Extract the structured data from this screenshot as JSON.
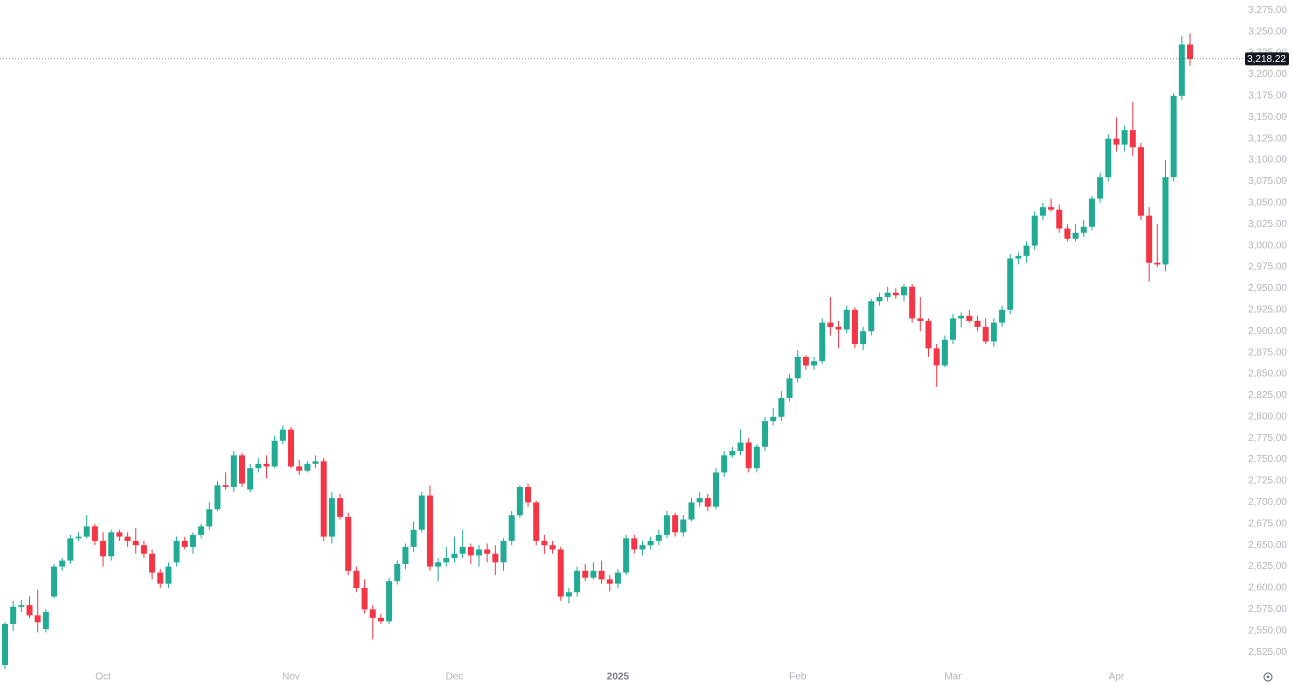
{
  "chart_data": {
    "type": "candlestick",
    "up_color": "#22ab94",
    "down_color": "#f23645",
    "ylim": [
      2510,
      3287
    ],
    "yticks": [
      {
        "value": 2525,
        "label": "2,525.00"
      },
      {
        "value": 2550,
        "label": "2,550.00"
      },
      {
        "value": 2575,
        "label": "2,575.00"
      },
      {
        "value": 2600,
        "label": "2,600.00"
      },
      {
        "value": 2625,
        "label": "2,625.00"
      },
      {
        "value": 2650,
        "label": "2,650.00"
      },
      {
        "value": 2675,
        "label": "2,675.00"
      },
      {
        "value": 2700,
        "label": "2,700.00"
      },
      {
        "value": 2725,
        "label": "2,725.00"
      },
      {
        "value": 2750,
        "label": "2,750.00"
      },
      {
        "value": 2775,
        "label": "2,775.00"
      },
      {
        "value": 2800,
        "label": "2,800.00"
      },
      {
        "value": 2825,
        "label": "2,825.00"
      },
      {
        "value": 2850,
        "label": "2,850.00"
      },
      {
        "value": 2875,
        "label": "2,875.00"
      },
      {
        "value": 2900,
        "label": "2,900.00"
      },
      {
        "value": 2925,
        "label": "2,925.00"
      },
      {
        "value": 2950,
        "label": "2,950.00"
      },
      {
        "value": 2975,
        "label": "2,975.00"
      },
      {
        "value": 3000,
        "label": "3,000.00"
      },
      {
        "value": 3025,
        "label": "3,025.00"
      },
      {
        "value": 3050,
        "label": "3,050.00"
      },
      {
        "value": 3075,
        "label": "3,075.00"
      },
      {
        "value": 3100,
        "label": "3,100.00"
      },
      {
        "value": 3125,
        "label": "3,125.00"
      },
      {
        "value": 3150,
        "label": "3,150.00"
      },
      {
        "value": 3175,
        "label": "3,175.00"
      },
      {
        "value": 3200,
        "label": "3,200.00"
      },
      {
        "value": 3225,
        "label": "3,225.00"
      },
      {
        "value": 3250,
        "label": "3,250.00"
      },
      {
        "value": 3275,
        "label": "3,275.00"
      }
    ],
    "last_price": {
      "value": 3218.22,
      "label": "3,218.22"
    },
    "categories": [
      null,
      null,
      null,
      null,
      null,
      null,
      null,
      null,
      null,
      null,
      null,
      null,
      "Oct",
      null,
      null,
      null,
      null,
      null,
      null,
      null,
      null,
      null,
      null,
      null,
      null,
      null,
      null,
      null,
      null,
      null,
      null,
      null,
      null,
      null,
      null,
      "Nov",
      null,
      null,
      null,
      null,
      null,
      null,
      null,
      null,
      null,
      null,
      null,
      null,
      null,
      null,
      null,
      null,
      null,
      null,
      null,
      "Dec",
      null,
      null,
      null,
      null,
      null,
      null,
      null,
      null,
      null,
      null,
      null,
      null,
      null,
      null,
      null,
      null,
      null,
      null,
      null,
      "2025",
      null,
      null,
      null,
      null,
      null,
      null,
      null,
      null,
      null,
      null,
      null,
      null,
      null,
      null,
      null,
      null,
      null,
      null,
      null,
      null,
      null,
      "Feb",
      null,
      null,
      null,
      null,
      null,
      null,
      null,
      null,
      null,
      null,
      null,
      null,
      null,
      null,
      null,
      null,
      null,
      null,
      "Mar",
      null,
      null,
      null,
      null,
      null,
      null,
      null,
      null,
      null,
      null,
      null,
      null,
      null,
      null,
      null,
      null,
      null,
      null,
      null,
      "Apr",
      null,
      null,
      null,
      null,
      null,
      null,
      null,
      null,
      null
    ],
    "candles": [
      [
        2510,
        2560,
        2505,
        2558
      ],
      [
        2558,
        2585,
        2550,
        2578
      ],
      [
        2578,
        2586,
        2572,
        2580
      ],
      [
        2580,
        2590,
        2565,
        2568
      ],
      [
        2568,
        2598,
        2548,
        2560
      ],
      [
        2552,
        2575,
        2548,
        2572
      ],
      [
        2590,
        2628,
        2588,
        2625
      ],
      [
        2625,
        2635,
        2620,
        2632
      ],
      [
        2632,
        2662,
        2628,
        2658
      ],
      [
        2658,
        2665,
        2655,
        2660
      ],
      [
        2660,
        2685,
        2658,
        2672
      ],
      [
        2672,
        2675,
        2650,
        2655
      ],
      [
        2655,
        2665,
        2625,
        2637
      ],
      [
        2637,
        2668,
        2632,
        2665
      ],
      [
        2665,
        2668,
        2655,
        2660
      ],
      [
        2660,
        2665,
        2648,
        2655
      ],
      [
        2655,
        2670,
        2640,
        2650
      ],
      [
        2650,
        2655,
        2635,
        2640
      ],
      [
        2640,
        2645,
        2610,
        2618
      ],
      [
        2618,
        2622,
        2600,
        2605
      ],
      [
        2605,
        2630,
        2600,
        2625
      ],
      [
        2630,
        2660,
        2625,
        2655
      ],
      [
        2655,
        2660,
        2645,
        2648
      ],
      [
        2648,
        2665,
        2640,
        2662
      ],
      [
        2662,
        2675,
        2658,
        2672
      ],
      [
        2672,
        2700,
        2668,
        2692
      ],
      [
        2692,
        2725,
        2690,
        2720
      ],
      [
        2720,
        2735,
        2715,
        2718
      ],
      [
        2718,
        2760,
        2712,
        2755
      ],
      [
        2755,
        2758,
        2718,
        2722
      ],
      [
        2715,
        2745,
        2712,
        2740
      ],
      [
        2740,
        2752,
        2735,
        2745
      ],
      [
        2745,
        2755,
        2728,
        2742
      ],
      [
        2742,
        2778,
        2740,
        2772
      ],
      [
        2772,
        2790,
        2768,
        2785
      ],
      [
        2785,
        2788,
        2740,
        2742
      ],
      [
        2742,
        2750,
        2732,
        2737
      ],
      [
        2737,
        2748,
        2735,
        2745
      ],
      [
        2745,
        2755,
        2740,
        2748
      ],
      [
        2748,
        2752,
        2655,
        2660
      ],
      [
        2660,
        2712,
        2652,
        2705
      ],
      [
        2705,
        2710,
        2680,
        2683
      ],
      [
        2683,
        2688,
        2615,
        2620
      ],
      [
        2620,
        2625,
        2595,
        2600
      ],
      [
        2600,
        2610,
        2570,
        2575
      ],
      [
        2575,
        2580,
        2540,
        2565
      ],
      [
        2565,
        2570,
        2558,
        2561
      ],
      [
        2561,
        2612,
        2558,
        2608
      ],
      [
        2608,
        2632,
        2604,
        2628
      ],
      [
        2628,
        2652,
        2622,
        2648
      ],
      [
        2648,
        2678,
        2642,
        2668
      ],
      [
        2668,
        2712,
        2665,
        2708
      ],
      [
        2708,
        2720,
        2620,
        2625
      ],
      [
        2625,
        2635,
        2608,
        2630
      ],
      [
        2630,
        2648,
        2625,
        2635
      ],
      [
        2635,
        2660,
        2630,
        2640
      ],
      [
        2640,
        2668,
        2635,
        2648
      ],
      [
        2648,
        2652,
        2628,
        2638
      ],
      [
        2638,
        2650,
        2625,
        2645
      ],
      [
        2645,
        2652,
        2630,
        2640
      ],
      [
        2640,
        2650,
        2615,
        2630
      ],
      [
        2630,
        2658,
        2620,
        2655
      ],
      [
        2655,
        2690,
        2650,
        2685
      ],
      [
        2685,
        2720,
        2682,
        2718
      ],
      [
        2718,
        2722,
        2695,
        2700
      ],
      [
        2700,
        2702,
        2650,
        2655
      ],
      [
        2655,
        2662,
        2640,
        2650
      ],
      [
        2650,
        2655,
        2640,
        2645
      ],
      [
        2645,
        2648,
        2585,
        2590
      ],
      [
        2590,
        2600,
        2582,
        2595
      ],
      [
        2595,
        2625,
        2590,
        2620
      ],
      [
        2620,
        2628,
        2608,
        2612
      ],
      [
        2612,
        2630,
        2610,
        2620
      ],
      [
        2620,
        2632,
        2605,
        2610
      ],
      [
        2610,
        2615,
        2596,
        2605
      ],
      [
        2605,
        2622,
        2600,
        2618
      ],
      [
        2618,
        2662,
        2615,
        2658
      ],
      [
        2658,
        2662,
        2640,
        2645
      ],
      [
        2645,
        2655,
        2638,
        2650
      ],
      [
        2650,
        2660,
        2645,
        2655
      ],
      [
        2655,
        2668,
        2650,
        2662
      ],
      [
        2662,
        2690,
        2658,
        2685
      ],
      [
        2685,
        2688,
        2660,
        2665
      ],
      [
        2665,
        2685,
        2660,
        2680
      ],
      [
        2680,
        2705,
        2678,
        2700
      ],
      [
        2700,
        2712,
        2695,
        2705
      ],
      [
        2705,
        2710,
        2690,
        2695
      ],
      [
        2695,
        2740,
        2692,
        2735
      ],
      [
        2735,
        2760,
        2730,
        2755
      ],
      [
        2755,
        2765,
        2752,
        2760
      ],
      [
        2760,
        2785,
        2755,
        2770
      ],
      [
        2770,
        2775,
        2735,
        2740
      ],
      [
        2740,
        2768,
        2735,
        2765
      ],
      [
        2765,
        2800,
        2760,
        2795
      ],
      [
        2795,
        2810,
        2790,
        2800
      ],
      [
        2800,
        2830,
        2795,
        2822
      ],
      [
        2822,
        2850,
        2818,
        2845
      ],
      [
        2845,
        2878,
        2840,
        2870
      ],
      [
        2870,
        2872,
        2855,
        2860
      ],
      [
        2860,
        2870,
        2855,
        2865
      ],
      [
        2865,
        2915,
        2862,
        2910
      ],
      [
        2910,
        2940,
        2895,
        2905
      ],
      [
        2905,
        2912,
        2880,
        2902
      ],
      [
        2902,
        2930,
        2898,
        2925
      ],
      [
        2925,
        2928,
        2880,
        2885
      ],
      [
        2885,
        2905,
        2878,
        2900
      ],
      [
        2900,
        2938,
        2895,
        2935
      ],
      [
        2935,
        2945,
        2930,
        2940
      ],
      [
        2940,
        2952,
        2935,
        2945
      ],
      [
        2945,
        2950,
        2938,
        2942
      ],
      [
        2942,
        2955,
        2935,
        2952
      ],
      [
        2952,
        2955,
        2910,
        2915
      ],
      [
        2915,
        2940,
        2900,
        2912
      ],
      [
        2912,
        2915,
        2870,
        2880
      ],
      [
        2880,
        2885,
        2835,
        2860
      ],
      [
        2860,
        2895,
        2858,
        2890
      ],
      [
        2890,
        2920,
        2885,
        2915
      ],
      [
        2915,
        2922,
        2905,
        2918
      ],
      [
        2918,
        2925,
        2910,
        2912
      ],
      [
        2912,
        2918,
        2900,
        2905
      ],
      [
        2905,
        2915,
        2885,
        2888
      ],
      [
        2888,
        2915,
        2882,
        2910
      ],
      [
        2910,
        2930,
        2905,
        2925
      ],
      [
        2925,
        2990,
        2920,
        2985
      ],
      [
        2985,
        2992,
        2978,
        2988
      ],
      [
        2988,
        3005,
        2980,
        3000
      ],
      [
        3000,
        3040,
        2995,
        3035
      ],
      [
        3035,
        3050,
        3030,
        3045
      ],
      [
        3045,
        3055,
        3040,
        3042
      ],
      [
        3042,
        3048,
        3015,
        3020
      ],
      [
        3020,
        3025,
        3005,
        3008
      ],
      [
        3008,
        3025,
        3005,
        3015
      ],
      [
        3015,
        3030,
        3010,
        3022
      ],
      [
        3022,
        3058,
        3018,
        3055
      ],
      [
        3055,
        3085,
        3050,
        3080
      ],
      [
        3080,
        3130,
        3075,
        3125
      ],
      [
        3125,
        3150,
        3110,
        3118
      ],
      [
        3118,
        3140,
        3110,
        3135
      ],
      [
        3135,
        3168,
        3105,
        3115
      ],
      [
        3115,
        3120,
        3030,
        3035
      ],
      [
        3035,
        3045,
        2958,
        2980
      ],
      [
        2980,
        3025,
        2975,
        2978
      ],
      [
        2978,
        3100,
        2970,
        3080
      ],
      [
        3080,
        3178,
        3075,
        3175
      ],
      [
        3175,
        3245,
        3170,
        3235
      ],
      [
        3235,
        3248,
        3210,
        3218.22
      ]
    ]
  }
}
